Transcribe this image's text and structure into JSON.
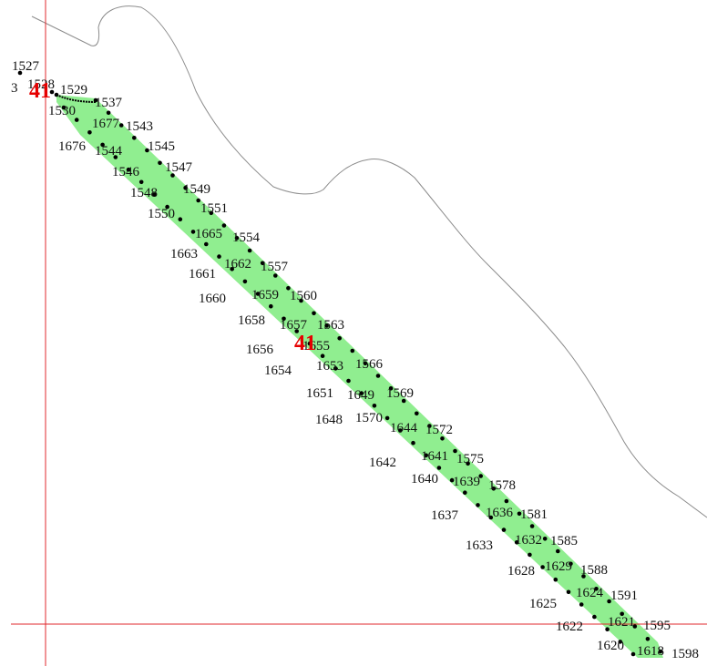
{
  "colors": {
    "background": "#ffffff",
    "strip_fill": "#90ee90",
    "boundary_line": "#8c8c8c",
    "crosshair": "#e0282c",
    "parcel_label": "#e60000",
    "point": "#000000",
    "point_label": "#111111"
  },
  "parcel_labels": [
    "41",
    "41"
  ],
  "point_labels": [
    "1527",
    "3",
    "1528",
    "1529",
    "1530",
    "1537",
    "1677",
    "1543",
    "1676",
    "1544",
    "1545",
    "1546",
    "1547",
    "1548",
    "1549",
    "1550",
    "1551",
    "1665",
    "1554",
    "1663",
    "1662",
    "1557",
    "1661",
    "1659",
    "1560",
    "1660",
    "1658",
    "1657",
    "1563",
    "1656",
    "1655",
    "1654",
    "1653",
    "1566",
    "1651",
    "1649",
    "1569",
    "1648",
    "1570",
    "1644",
    "1572",
    "1642",
    "1641",
    "1575",
    "1640",
    "1639",
    "1578",
    "1637",
    "1636",
    "1581",
    "1633",
    "1632",
    "1585",
    "1628",
    "1629",
    "1588",
    "1625",
    "1624",
    "1591",
    "1622",
    "1621",
    "1595",
    "1620",
    "1618",
    "1598"
  ]
}
